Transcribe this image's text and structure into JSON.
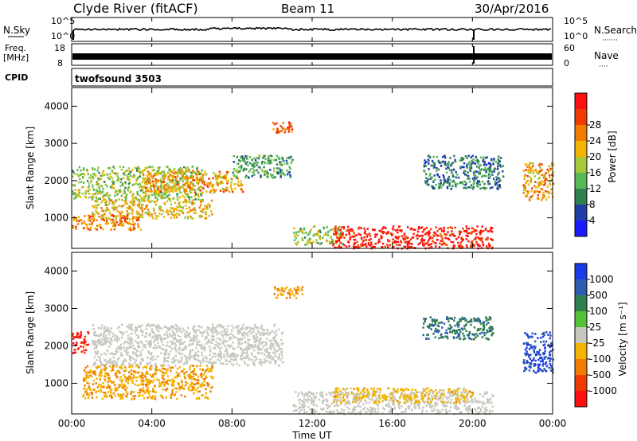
{
  "header": {
    "station": "Clyde River (fitACF)",
    "beam": "Beam 11",
    "date": "30/Apr/2016"
  },
  "strip_labels": {
    "nsky": "N.Sky",
    "nsearch": "N.Search",
    "nsearch_dots": "·······",
    "freq_line1": "Freq.",
    "freq_line2": "[MHz]",
    "nave": "Nave",
    "nave_dots": "····",
    "cpid": "CPID",
    "cpid_value": "twofsound 3503",
    "noise_ticks": [
      "10^5",
      "10^0"
    ],
    "noise_right_ticks": [
      "10^5",
      "10^0"
    ],
    "freq_ticks": [
      "18",
      "8"
    ],
    "nave_ticks": [
      "60",
      "0"
    ]
  },
  "axes": {
    "ylabel": "Slant Range [km]",
    "xlabel": "Time UT",
    "yticks": [
      "1000",
      "2000",
      "3000",
      "4000"
    ],
    "xticks": [
      "00:00",
      "04:00",
      "08:00",
      "12:00",
      "16:00",
      "20:00",
      "00:00"
    ]
  },
  "colors": {
    "frame": "#000000",
    "ground_scatter": "#c8c8c0",
    "power_scale": [
      "#1a1aff",
      "#1f3fa6",
      "#2f7f4f",
      "#57b857",
      "#a4c93a",
      "#f2b400",
      "#f07d00",
      "#ee3b00",
      "#ff1010"
    ],
    "velocity_scale": [
      "#1a3ae6",
      "#2e5db0",
      "#2f7f4f",
      "#55c23a",
      "#c8c8c0",
      "#f2b400",
      "#f07d00",
      "#ee3b00",
      "#ff1010"
    ]
  },
  "chart_data": [
    {
      "type": "heatmap",
      "title": "",
      "variable": "Power",
      "ylabel": "Slant Range [km]",
      "xlabel": "",
      "xlim": [
        "00:00",
        "24:00"
      ],
      "ylim": [
        180,
        4500
      ],
      "colorbar": {
        "label": "Power [dB]",
        "ticks": [
          "4",
          "8",
          "12",
          "16",
          "20",
          "24",
          "28"
        ],
        "range": [
          0,
          30
        ]
      },
      "echo_regions": [
        {
          "t": [
            0.0,
            6.5
          ],
          "r": [
            1500,
            2400
          ],
          "level": 14
        },
        {
          "t": [
            1.0,
            7.0
          ],
          "r": [
            1000,
            1500
          ],
          "level": 18
        },
        {
          "t": [
            0.0,
            3.5
          ],
          "r": [
            700,
            1100
          ],
          "level": 22
        },
        {
          "t": [
            3.5,
            8.5
          ],
          "r": [
            1700,
            2300
          ],
          "level": 20
        },
        {
          "t": [
            8.0,
            11.0
          ],
          "r": [
            2100,
            2700
          ],
          "level": 10
        },
        {
          "t": [
            10.0,
            11.0
          ],
          "r": [
            3300,
            3600
          ],
          "level": 24
        },
        {
          "t": [
            11.0,
            13.5
          ],
          "r": [
            300,
            800
          ],
          "level": 14
        },
        {
          "t": [
            13.0,
            21.0
          ],
          "r": [
            200,
            800
          ],
          "level": 28
        },
        {
          "t": [
            17.5,
            21.5
          ],
          "r": [
            1800,
            2700
          ],
          "level": 8
        },
        {
          "t": [
            22.5,
            24.0
          ],
          "r": [
            1500,
            2500
          ],
          "level": 20
        }
      ]
    },
    {
      "type": "heatmap",
      "title": "",
      "variable": "Velocity",
      "ylabel": "Slant Range [km]",
      "xlabel": "Time UT",
      "xlim": [
        "00:00",
        "24:00"
      ],
      "ylim": [
        180,
        4500
      ],
      "colorbar": {
        "label": "Velocity [m s⁻¹]",
        "ticks": [
          "1000",
          "500",
          "100",
          "25",
          "-25",
          "-100",
          "-500",
          "-1000"
        ],
        "range": [
          -1000,
          1000
        ]
      },
      "echo_regions": [
        {
          "t": [
            0.0,
            0.8
          ],
          "r": [
            1800,
            2400
          ],
          "level": -800
        },
        {
          "t": [
            1.0,
            10.5
          ],
          "r": [
            1500,
            2600
          ],
          "level": 0
        },
        {
          "t": [
            0.5,
            7.0
          ],
          "r": [
            600,
            1500
          ],
          "level": -300
        },
        {
          "t": [
            10.0,
            11.5
          ],
          "r": [
            3300,
            3600
          ],
          "level": -300
        },
        {
          "t": [
            11.0,
            21.0
          ],
          "r": [
            200,
            800
          ],
          "level": 50
        },
        {
          "t": [
            13.0,
            20.0
          ],
          "r": [
            500,
            900
          ],
          "level": -200
        },
        {
          "t": [
            17.5,
            21.0
          ],
          "r": [
            2200,
            2800
          ],
          "level": 500
        },
        {
          "t": [
            22.5,
            24.0
          ],
          "r": [
            1300,
            2400
          ],
          "level": 800
        }
      ]
    }
  ]
}
